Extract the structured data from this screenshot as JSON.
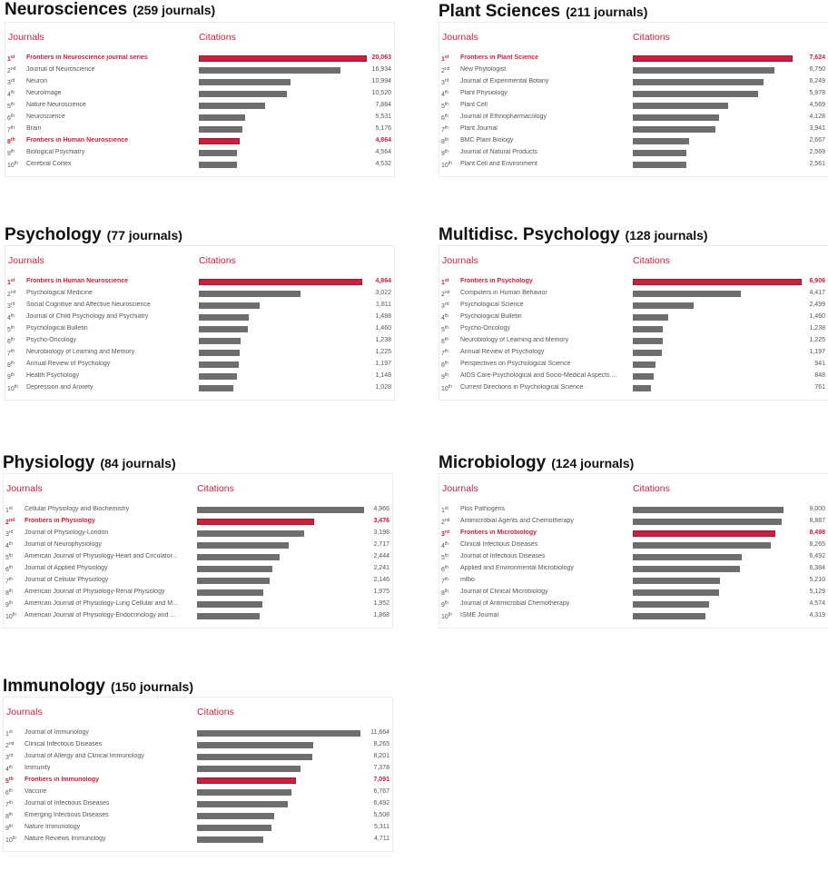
{
  "labels": {
    "journals": "Journals",
    "citations": "Citations",
    "journals_word": "journals"
  },
  "chart_data": [
    {
      "type": "bar",
      "title": "Neurosciences",
      "subtitle": "(259 journals)",
      "highlight_color": "#c8203f",
      "bar_color": "#6e6e6e",
      "ranks": [
        "1",
        "2",
        "3",
        "4",
        "5",
        "6",
        "7",
        "8",
        "9",
        "10"
      ],
      "suffixes": [
        "st",
        "nd",
        "rd",
        "th",
        "th",
        "th",
        "th",
        "th",
        "th",
        "th"
      ],
      "categories": [
        "Frontiers in Neuroscience journal series",
        "Journal of Neuroscience",
        "Neuron",
        "NeuroImage",
        "Nature Neuroscience",
        "Neuroscience",
        "Brain",
        "Frontiers in Human Neuroscience",
        "Biological Psychiatry",
        "Cerebral Cortex"
      ],
      "values": [
        20063,
        16934,
        10994,
        10520,
        7884,
        5531,
        5176,
        4864,
        4564,
        4532
      ],
      "labels": [
        "20,063",
        "16,934",
        "10,994",
        "10,520",
        "7,884",
        "5,531",
        "5,176",
        "4,864",
        "4,564",
        "4,532"
      ],
      "highlight": [
        0,
        7
      ]
    },
    {
      "type": "bar",
      "title": "Plant Sciences",
      "subtitle": "(211 journals)",
      "ranks": [
        "1",
        "2",
        "3",
        "4",
        "5",
        "6",
        "7",
        "8",
        "9",
        "10"
      ],
      "suffixes": [
        "st",
        "nd",
        "rd",
        "th",
        "th",
        "th",
        "th",
        "th",
        "th",
        "th"
      ],
      "categories": [
        "Frontiers in Plant Science",
        "New Phytologist",
        "Journal of Experimental Botany",
        "Plant Physiology",
        "Plant Cell",
        "Journal of Ethnopharmacology",
        "Plant Journal",
        "BMC Plant Biology",
        "Journal of Natural Products",
        "Plant Cell and Environment"
      ],
      "values": [
        7624,
        6750,
        6249,
        5978,
        4569,
        4128,
        3941,
        2667,
        2569,
        2561
      ],
      "labels": [
        "7,624",
        "6,750",
        "6,249",
        "5,978",
        "4,569",
        "4,128",
        "3,941",
        "2,667",
        "2,569",
        "2,561"
      ],
      "highlight": [
        0
      ]
    },
    {
      "type": "bar",
      "title": "Psychology",
      "subtitle": "(77 journals)",
      "ranks": [
        "1",
        "2",
        "3",
        "4",
        "5",
        "6",
        "7",
        "8",
        "9",
        "10"
      ],
      "suffixes": [
        "st",
        "nd",
        "rd",
        "th",
        "th",
        "th",
        "th",
        "th",
        "th",
        "th"
      ],
      "categories": [
        "Frontiers in Human Neuroscience",
        "Psychological Medicine",
        "Social Cognitive and Affective Neuroscience",
        "Journal of Child Psychology and Psychiatry",
        "Psychological Bulletin",
        "Psycho-Oncology",
        "Neurobiology of Learning and Memory",
        "Annual Review of Psychology",
        "Health Psychology",
        "Depression and Anxiety"
      ],
      "values": [
        4864,
        3022,
        1811,
        1488,
        1460,
        1238,
        1225,
        1197,
        1148,
        1028
      ],
      "labels": [
        "4,864",
        "3,022",
        "1,811",
        "1,488",
        "1,460",
        "1,238",
        "1,225",
        "1,197",
        "1,148",
        "1,028"
      ],
      "highlight": [
        0
      ]
    },
    {
      "type": "bar",
      "title": "Multidisc.  Psychology",
      "subtitle": "(128 journals)",
      "ranks": [
        "1",
        "2",
        "3",
        "4",
        "5",
        "6",
        "7",
        "8",
        "9",
        "10"
      ],
      "suffixes": [
        "st",
        "nd",
        "rd",
        "th",
        "th",
        "th",
        "th",
        "th",
        "th",
        "th"
      ],
      "categories": [
        "Frontiers in Psychology",
        "Computers in Human Behavior",
        "Psychological Science",
        "Psychological Bulletin",
        "Psycho-Oncology",
        "Neurobiology of Learning and Memory",
        "Annual Review of Psychology",
        "Perspectives on Psychological Science",
        "AIDS Care-Psychological and Socio-Medical Aspects ...",
        "Current Directions in Psychological Science"
      ],
      "values": [
        6906,
        4417,
        2499,
        1460,
        1238,
        1225,
        1197,
        941,
        848,
        761
      ],
      "labels": [
        "6,906",
        "4,417",
        "2,499",
        "1,460",
        "1,238",
        "1,225",
        "1,197",
        "941",
        "848",
        "761"
      ],
      "highlight": [
        0
      ]
    },
    {
      "type": "bar",
      "title": "Physiology",
      "subtitle": "(84 journals)",
      "ranks": [
        "1",
        "2",
        "3",
        "4",
        "5",
        "6",
        "7",
        "8",
        "9",
        "10"
      ],
      "suffixes": [
        "st",
        "nd",
        "rd",
        "th",
        "th",
        "th",
        "th",
        "th",
        "th",
        "th"
      ],
      "categories": [
        "Cellular Physiology and Biochemistry",
        "Frontiers in Physiology",
        "Journal of Physiology-London",
        "Journal of Neurophysiology",
        "American Journal of Physiology-Heart and Circulator...",
        "Journal of Applied Physiology",
        "Journal of Cellular Physiology",
        "American Journal of Physiology-Renal Physiology",
        "American Journal of Physiology-Lung Cellular and M...",
        "American Journal of Physiology-Endocrinology and ..."
      ],
      "values": [
        4966,
        3476,
        3198,
        2717,
        2444,
        2241,
        2146,
        1975,
        1952,
        1868
      ],
      "labels": [
        "4,966",
        "3,476",
        "3,198",
        "2,717",
        "2,444",
        "2,241",
        "2,146",
        "1,975",
        "1,952",
        "1,868"
      ],
      "highlight": [
        1
      ]
    },
    {
      "type": "bar",
      "title": "Microbiology",
      "subtitle": "(124 journals)",
      "ranks": [
        "1",
        "2",
        "3",
        "4",
        "5",
        "6",
        "7",
        "8",
        "9",
        "10"
      ],
      "suffixes": [
        "st",
        "nd",
        "rd",
        "th",
        "th",
        "th",
        "th",
        "th",
        "th",
        "th"
      ],
      "categories": [
        "Plos Pathogens",
        "Antimicrobial Agents and Chemotherapy",
        "Frontiers in Microbiology",
        "Clinical Infectious Diseases",
        "Journal of Infectious Diseases",
        "Applied and Environmental Microbiology",
        "mBio",
        "Journal of Clinical Microbiology",
        "Journal of Antimicrobial Chemotherapy",
        "ISME Journal"
      ],
      "values": [
        9000,
        8887,
        8498,
        8265,
        6492,
        6384,
        5210,
        5129,
        4574,
        4319
      ],
      "labels": [
        "9,000",
        "8,887",
        "8,498",
        "8,265",
        "6,492",
        "6,384",
        "5,210",
        "5,129",
        "4,574",
        "4,319"
      ],
      "highlight": [
        2
      ]
    },
    {
      "type": "bar",
      "title": "Immunology",
      "subtitle": "(150 journals)",
      "ranks": [
        "1",
        "2",
        "3",
        "4",
        "5",
        "6",
        "7",
        "8",
        "9",
        "10"
      ],
      "suffixes": [
        "st",
        "nd",
        "rd",
        "th",
        "th",
        "th",
        "th",
        "th",
        "th",
        "th"
      ],
      "categories": [
        "Journal of Immunology",
        "Clinical Infectious Diseases",
        "Journal of Allergy and Clinical Immunology",
        "Immunity",
        "Frontiers in Immunology",
        "Vaccine",
        "Journal of Infectious Diseases",
        "Emerging Infectious Diseases",
        "Nature Immunology",
        "Nature Reviews Immunology"
      ],
      "values": [
        11664,
        8265,
        8201,
        7378,
        7091,
        6767,
        6492,
        5508,
        5311,
        4711
      ],
      "labels": [
        "11,664",
        "8,265",
        "8,201",
        "7,378",
        "7,091",
        "6,767",
        "6,492",
        "5,508",
        "5,311",
        "4,711"
      ],
      "highlight": [
        4
      ]
    }
  ]
}
